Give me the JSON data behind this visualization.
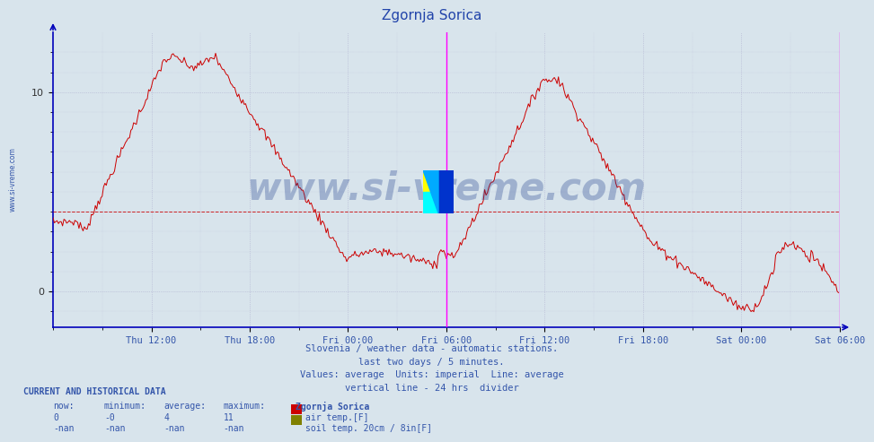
{
  "title": "Zgornja Sorica",
  "subtitle_lines": [
    "Slovenia / weather data - automatic stations.",
    "last two days / 5 minutes.",
    "Values: average  Units: imperial  Line: average",
    "vertical line - 24 hrs  divider"
  ],
  "legend_title": "Zgornja Sorica",
  "legend_items": [
    {
      "label": "air temp.[F]",
      "color": "#cc0000"
    },
    {
      "label": "soil temp. 20cm / 8in[F]",
      "color": "#808000"
    }
  ],
  "current_data_label": "CURRENT AND HISTORICAL DATA",
  "current_data_headers": [
    "now:",
    "minimum:",
    "average:",
    "maximum:"
  ],
  "current_data_row1": [
    "0",
    "-0",
    "4",
    "11"
  ],
  "current_data_row2": [
    "-nan",
    "-nan",
    "-nan",
    "-nan"
  ],
  "ylim": [
    -1.8,
    13.0
  ],
  "yticks": [
    0,
    10
  ],
  "background_color": "#d8e4ec",
  "line_color": "#cc0000",
  "grid_color": "#aaaacc",
  "avg_line_value": 4.0,
  "avg_line_color": "#cc0000",
  "vline_color": "#ff00ff",
  "watermark": "www.si-vreme.com",
  "watermark_color": "#1a3a8a",
  "watermark_alpha": 0.3,
  "sidebar_text": "www.si-vreme.com",
  "x_tick_labels": [
    "Thu 12:00",
    "Thu 18:00",
    "Fri 00:00",
    "Fri 06:00",
    "Fri 12:00",
    "Fri 18:00",
    "Sat 00:00",
    "Sat 06:00"
  ],
  "x_tick_positions": [
    72,
    144,
    216,
    288,
    360,
    432,
    504,
    576
  ]
}
